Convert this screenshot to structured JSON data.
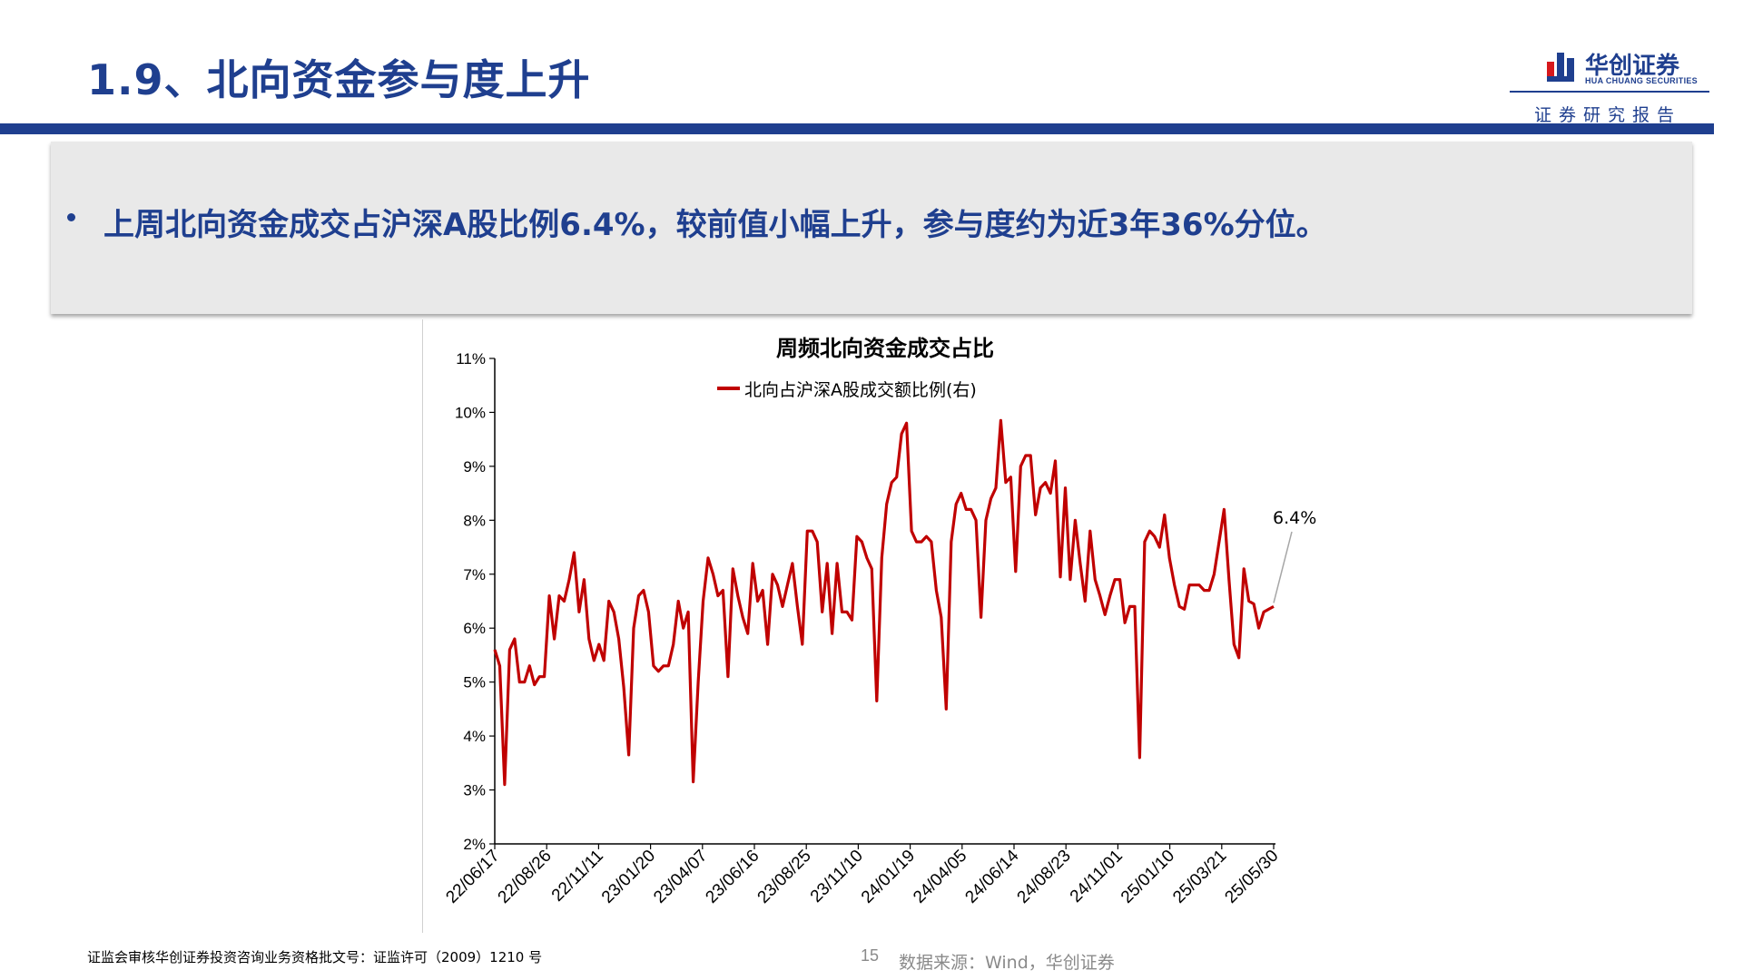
{
  "header": {
    "title": "1.9、北向资金参与度上升",
    "logo_cn": "华创证券",
    "logo_en": "HUA CHUANG SECURITIES",
    "report_tag": "证券研究报告",
    "brand_color": "#1f3f8f"
  },
  "summary": {
    "bullet_text": "上周北向资金成交占沪深A股比例6.4%，较前值小幅上升，参与度约为近3年36%分位。"
  },
  "chart_data": {
    "type": "line",
    "title": "周频北向资金成交占比",
    "xlabel": "",
    "ylabel": "",
    "ylim": [
      2,
      11
    ],
    "y_ticks": [
      "2%",
      "3%",
      "4%",
      "5%",
      "6%",
      "7%",
      "8%",
      "9%",
      "10%",
      "11%"
    ],
    "x_tick_labels": [
      "22/06/17",
      "22/08/26",
      "22/11/11",
      "23/01/20",
      "23/04/07",
      "23/06/16",
      "23/08/25",
      "23/11/10",
      "24/01/19",
      "24/04/05",
      "24/06/14",
      "24/08/23",
      "24/11/01",
      "25/01/10",
      "25/03/21",
      "25/05/30"
    ],
    "grid": false,
    "legend_position": "top-center",
    "series": [
      {
        "name": "北向占沪深A股成交额比例(右)",
        "color": "#c00000",
        "unit": "%",
        "values": [
          5.6,
          5.3,
          3.1,
          5.6,
          5.8,
          5.0,
          5.0,
          5.3,
          4.95,
          5.1,
          5.1,
          6.6,
          5.8,
          6.6,
          6.5,
          6.9,
          7.4,
          6.3,
          6.9,
          5.8,
          5.4,
          5.7,
          5.4,
          6.5,
          6.3,
          5.8,
          4.9,
          3.65,
          6.0,
          6.6,
          6.7,
          6.3,
          5.3,
          5.2,
          5.3,
          5.3,
          5.7,
          6.5,
          6.0,
          6.3,
          3.15,
          5.0,
          6.5,
          7.3,
          7.0,
          6.6,
          6.7,
          5.1,
          7.1,
          6.6,
          6.2,
          5.9,
          7.2,
          6.5,
          6.7,
          5.7,
          7.0,
          6.8,
          6.4,
          6.8,
          7.2,
          6.4,
          5.7,
          7.8,
          7.8,
          7.6,
          6.3,
          7.2,
          5.9,
          7.2,
          6.3,
          6.3,
          6.15,
          7.7,
          7.6,
          7.3,
          7.1,
          4.65,
          7.3,
          8.3,
          8.7,
          8.8,
          9.6,
          9.8,
          7.8,
          7.6,
          7.6,
          7.7,
          7.6,
          6.7,
          6.2,
          4.5,
          7.6,
          8.3,
          8.5,
          8.2,
          8.2,
          8.0,
          6.2,
          8.0,
          8.4,
          8.6,
          9.85,
          8.7,
          8.8,
          7.05,
          9.0,
          9.2,
          9.2,
          8.1,
          8.6,
          8.7,
          8.5,
          9.1,
          6.95,
          8.6,
          6.9,
          8.0,
          7.2,
          6.5,
          7.8,
          6.9,
          6.6,
          6.25,
          6.6,
          6.9,
          6.9,
          6.1,
          6.4,
          6.4,
          3.6,
          7.6,
          7.8,
          7.7,
          7.5,
          8.1,
          7.3,
          6.8,
          6.4,
          6.35,
          6.8,
          6.8,
          6.8,
          6.7,
          6.7,
          7.0,
          7.6,
          8.2,
          6.9,
          5.7,
          5.45,
          7.1,
          6.5,
          6.45,
          6.0,
          6.3,
          6.35,
          6.4
        ]
      }
    ],
    "annotations": [
      {
        "text": "6.4%",
        "target_value": 6.4
      }
    ]
  },
  "footer": {
    "license": "证监会审核华创证券投资咨询业务资格批文号：证监许可（2009）1210 号",
    "page_number": "15",
    "source": "数据来源：Wind，华创证券"
  }
}
